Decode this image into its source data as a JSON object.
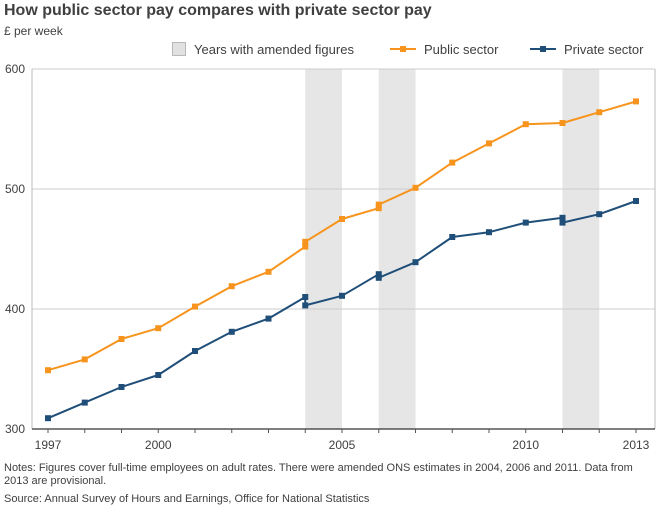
{
  "chart_data": {
    "type": "line",
    "title": "How public sector pay compares with private sector pay",
    "ylabel": "£ per week",
    "xlabel": "",
    "ylim": [
      300,
      600
    ],
    "xlim": [
      1997,
      2013
    ],
    "y_ticks": [
      300,
      400,
      500,
      600
    ],
    "x_ticks": [
      {
        "value": 1997,
        "label": "1997"
      },
      {
        "value": 2000,
        "label": "2000"
      },
      {
        "value": 2005,
        "label": "2005"
      },
      {
        "value": 2010,
        "label": "2010"
      },
      {
        "value": 2013,
        "label": "2013"
      }
    ],
    "shaded_years": [
      {
        "start": 2004,
        "end": 2005
      },
      {
        "start": 2006,
        "end": 2007
      },
      {
        "start": 2011,
        "end": 2012
      }
    ],
    "legend": {
      "amended": "Years with amended figures",
      "public": "Public sector",
      "private": "Private sector"
    },
    "series": [
      {
        "name": "Public sector",
        "color": "#f7941d",
        "points": [
          {
            "x": 1997,
            "y": 349
          },
          {
            "x": 1998,
            "y": 358
          },
          {
            "x": 1999,
            "y": 375
          },
          {
            "x": 2000,
            "y": 384
          },
          {
            "x": 2001,
            "y": 402
          },
          {
            "x": 2002,
            "y": 419
          },
          {
            "x": 2003,
            "y": 431
          },
          {
            "x": 2004,
            "y": 452
          },
          {
            "x": 2004,
            "y": 456
          },
          {
            "x": 2005,
            "y": 475
          },
          {
            "x": 2006,
            "y": 484
          },
          {
            "x": 2006,
            "y": 487
          },
          {
            "x": 2007,
            "y": 501
          },
          {
            "x": 2008,
            "y": 522
          },
          {
            "x": 2009,
            "y": 538
          },
          {
            "x": 2010,
            "y": 554
          },
          {
            "x": 2011,
            "y": 555
          },
          {
            "x": 2012,
            "y": 564
          },
          {
            "x": 2013,
            "y": 573
          }
        ]
      },
      {
        "name": "Private sector",
        "color": "#1f4e79",
        "points": [
          {
            "x": 1997,
            "y": 309
          },
          {
            "x": 1998,
            "y": 322
          },
          {
            "x": 1999,
            "y": 335
          },
          {
            "x": 2000,
            "y": 345
          },
          {
            "x": 2001,
            "y": 365
          },
          {
            "x": 2002,
            "y": 381
          },
          {
            "x": 2003,
            "y": 392
          },
          {
            "x": 2004,
            "y": 410
          },
          {
            "x": 2004,
            "y": 403
          },
          {
            "x": 2005,
            "y": 411
          },
          {
            "x": 2006,
            "y": 429
          },
          {
            "x": 2006,
            "y": 426
          },
          {
            "x": 2007,
            "y": 439
          },
          {
            "x": 2008,
            "y": 460
          },
          {
            "x": 2009,
            "y": 464
          },
          {
            "x": 2010,
            "y": 472
          },
          {
            "x": 2011,
            "y": 476
          },
          {
            "x": 2011,
            "y": 472
          },
          {
            "x": 2012,
            "y": 479
          },
          {
            "x": 2013,
            "y": 490
          }
        ]
      }
    ]
  },
  "notes": "Notes: Figures cover full-time employees on adult rates. There were amended ONS estimates in 2004, 2006 and 2011. Data from 2013 are provisional.",
  "source": "Source: Annual Survey of Hours and Earnings, Office for National Statistics",
  "colors": {
    "public": "#f7941d",
    "private": "#1f4e79",
    "shade": "#e6e6e6",
    "grid": "#cccccc",
    "text": "#404040"
  }
}
